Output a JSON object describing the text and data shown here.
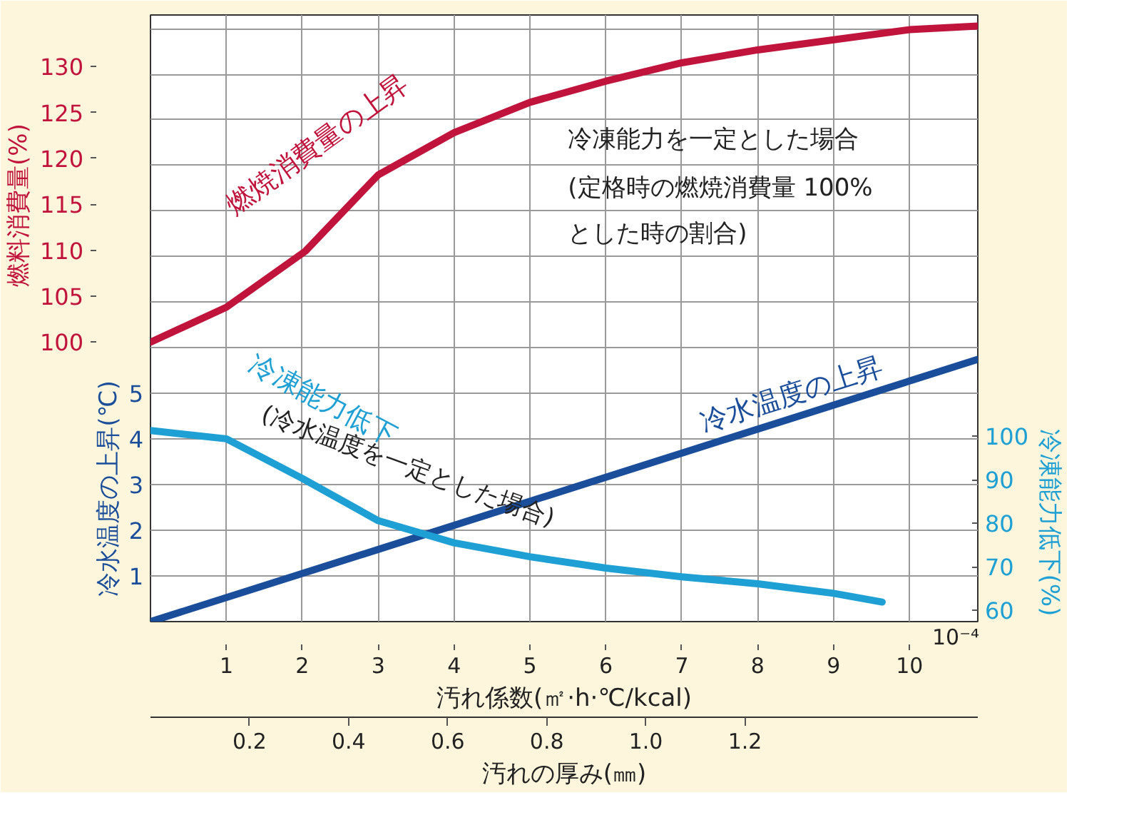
{
  "chart_data": {
    "type": "line",
    "xlabel": "汚れ係数(㎡·h·℃/kcal)",
    "x2label": "汚れの厚み(㎜)",
    "ylabel": "冷水温度の上昇(℃)",
    "y2label": "燃料消費量(%)",
    "y3label": "冷凍能力低下(%)",
    "xlim": [
      0,
      10.9
    ],
    "xticks": [
      1,
      2,
      3,
      4,
      5,
      6,
      7,
      8,
      9,
      10
    ],
    "x2lim": [
      0,
      1.67
    ],
    "x2ticks": [
      0.2,
      0.4,
      0.6,
      0.8,
      {
        "value": 1.0,
        "label": "1.0"
      },
      1.2
    ],
    "ylim": [
      0,
      13.3
    ],
    "yticks": [
      1,
      2,
      3,
      4,
      5,
      {
        "value": 6,
        "label": null
      },
      {
        "value": 7,
        "label": null
      },
      {
        "value": 8,
        "label": null
      },
      {
        "value": 9,
        "label": null
      },
      {
        "value": 10,
        "label": null
      },
      {
        "value": 11,
        "label": null
      },
      {
        "value": 12,
        "label": null
      },
      {
        "value": 13,
        "label": null
      }
    ],
    "y2lim": [
      69.6,
      135.6
    ],
    "y2ticks": [
      100,
      105,
      110,
      115,
      120,
      125,
      130
    ],
    "y3lim": [
      57.4,
      196.8
    ],
    "y3ticks": [
      60,
      70,
      80,
      90,
      100
    ],
    "grid": true,
    "line_style": "solid",
    "marker": "none",
    "annotations": [
      "冷凍能力を一定とした場合",
      "(定格時の燃焼消費量 100%",
      "とした時の割合)",
      "(冷水温度を一定とした場合)",
      "10⁻⁴"
    ],
    "series": [
      {
        "name": "燃焼消費量の上昇",
        "color": "#c0143c",
        "axis": "y2",
        "x": [
          0,
          1,
          2.04,
          3,
          4,
          5,
          6,
          7,
          8,
          9,
          10,
          10.9
        ],
        "values": [
          100,
          103.8,
          109.9,
          118.2,
          122.8,
          126.1,
          128.4,
          130.4,
          131.8,
          132.9,
          134,
          134.4
        ]
      },
      {
        "name": "冷水温度の上昇",
        "color": "#1a4d9a",
        "x": [
          0,
          10.9
        ],
        "values": [
          0,
          5.75
        ]
      },
      {
        "name": "冷凍能力低下",
        "color": "#1ea0d4",
        "axis": "y3",
        "x": [
          0,
          1,
          2,
          3,
          4,
          5,
          6,
          7,
          8,
          9,
          9.64
        ],
        "values": [
          101.3,
          99.4,
          90.3,
          80.6,
          75.5,
          72.3,
          69.7,
          67.7,
          66.1,
          63.9,
          61.9
        ]
      }
    ]
  }
}
